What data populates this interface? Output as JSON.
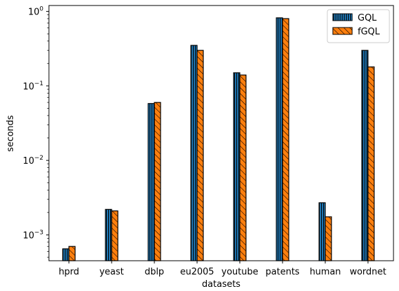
{
  "chart_data": {
    "type": "bar",
    "title": "",
    "xlabel": "datasets",
    "ylabel": "seconds",
    "yscale": "log",
    "ylim": [
      0.00045,
      1.2
    ],
    "yticks": [
      {
        "value": 0.001,
        "base": "10",
        "exp": "−3"
      },
      {
        "value": 0.01,
        "base": "10",
        "exp": "−2"
      },
      {
        "value": 0.1,
        "base": "10",
        "exp": "−1"
      },
      {
        "value": 1,
        "base": "10",
        "exp": "0"
      }
    ],
    "categories": [
      "hprd",
      "yeast",
      "dblp",
      "eu2005",
      "youtube",
      "patents",
      "human",
      "wordnet"
    ],
    "series": [
      {
        "name": "GQL",
        "color": "#1f77b4",
        "hatch": "vertical",
        "values": [
          0.00065,
          0.0022,
          0.058,
          0.35,
          0.15,
          0.82,
          0.0027,
          0.3
        ]
      },
      {
        "name": "fGQL",
        "color": "#ff7f0e",
        "hatch": "diagonal",
        "values": [
          0.0007,
          0.0021,
          0.06,
          0.3,
          0.14,
          0.8,
          0.00175,
          0.18
        ]
      }
    ],
    "legend": "top-right",
    "grid": false
  }
}
